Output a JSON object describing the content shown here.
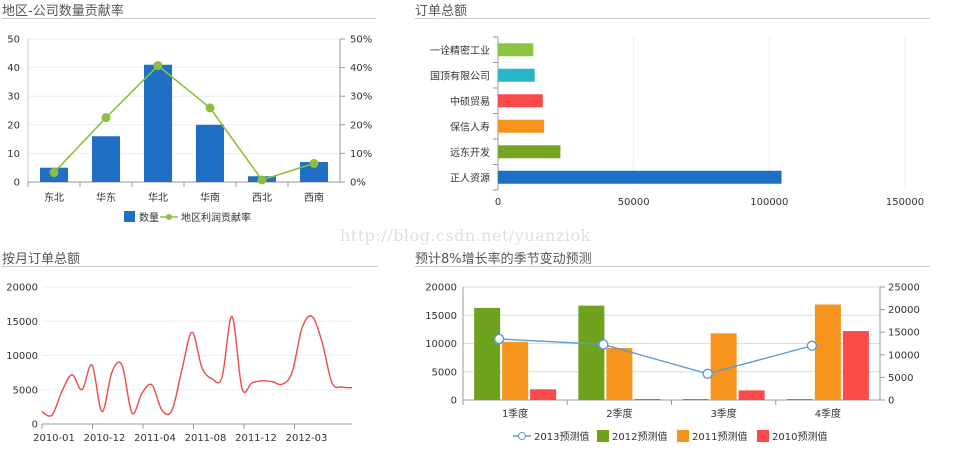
{
  "watermark": "http://blog.csdn.net/yuanziok",
  "chart_data": [
    {
      "id": "region",
      "type": "bar",
      "title": "地区-公司数量贡献率",
      "categories": [
        "东北",
        "华东",
        "华北",
        "华南",
        "西北",
        "西南"
      ],
      "series": [
        {
          "name": "数量",
          "type": "bar",
          "axis": "left",
          "color": "#1f6fc5",
          "values": [
            5,
            16,
            41,
            20,
            2,
            7
          ]
        },
        {
          "name": "地区利润贡献率",
          "type": "line",
          "axis": "right",
          "color": "#8cbf3f",
          "values": [
            3.3,
            22.5,
            40.7,
            25.9,
            0.7,
            6.5
          ]
        }
      ],
      "ylim_left": [
        0,
        50
      ],
      "yticks_left": [
        "0",
        "10",
        "20",
        "30",
        "40",
        "50"
      ],
      "ylim_right": [
        0,
        50
      ],
      "yticks_right": [
        "0%",
        "10%",
        "20%",
        "30%",
        "40%",
        "50%"
      ],
      "legend": "bottom"
    },
    {
      "id": "orders",
      "type": "bar",
      "orientation": "horizontal",
      "title": "订单总额",
      "categories": [
        "一诠精密工业",
        "国顶有限公司",
        "中硕贸易",
        "保信人寿",
        "远东开发",
        "正人资源"
      ],
      "values": [
        13000,
        13500,
        16500,
        17000,
        23000,
        104500
      ],
      "colors": [
        "#8cc63f",
        "#26b5c9",
        "#fb4a4a",
        "#f7941d",
        "#76a524",
        "#1f6fc5"
      ],
      "xlim": [
        0,
        150000
      ],
      "xticks": [
        "0",
        "50000",
        "100000",
        "150000"
      ],
      "grid": true
    },
    {
      "id": "monthly",
      "type": "line",
      "title": "按月订单总额",
      "x": [
        0,
        1,
        2,
        3,
        4,
        5,
        6,
        7,
        8,
        9,
        10,
        11,
        12,
        13,
        14,
        15,
        16,
        17,
        18,
        19,
        20,
        21,
        22,
        23,
        24,
        25,
        26,
        27,
        28,
        29,
        30,
        31
      ],
      "series": [
        {
          "name": "",
          "color": "#ef4a4a",
          "values": [
            1800,
            1300,
            4800,
            7200,
            5000,
            8600,
            1800,
            7600,
            8600,
            1600,
            4500,
            5700,
            2000,
            2000,
            8000,
            13400,
            8200,
            6600,
            6800,
            15700,
            5200,
            6000,
            6300,
            6200,
            5800,
            7500,
            14000,
            15700,
            12000,
            6000,
            5400,
            5300
          ]
        }
      ],
      "xticks": [
        "2010-01",
        "2010-12",
        "2011-04",
        "2011-08",
        "2011-12",
        "2012-03"
      ],
      "ylim": [
        0,
        20000
      ],
      "yticks": [
        "0",
        "5000",
        "10000",
        "15000",
        "20000"
      ],
      "grid": true
    },
    {
      "id": "forecast",
      "type": "bar",
      "title": "预计8%增长率的季节变动预测",
      "categories": [
        "1季度",
        "2季度",
        "3季度",
        "4季度"
      ],
      "series": [
        {
          "name": "2013预测值",
          "type": "line",
          "axis": "right",
          "color": "#5b9bd5",
          "values": [
            13500,
            12300,
            5800,
            12000
          ]
        },
        {
          "name": "2012预测值",
          "type": "bar",
          "axis": "left",
          "color": "#6ea21c",
          "values": [
            16300,
            16700,
            0,
            0
          ]
        },
        {
          "name": "2011预测值",
          "type": "bar",
          "axis": "left",
          "color": "#f7941d",
          "values": [
            10300,
            9200,
            11800,
            16900
          ]
        },
        {
          "name": "2010预测值",
          "type": "bar",
          "axis": "left",
          "color": "#fb4a4a",
          "values": [
            1900,
            0,
            1700,
            12200
          ]
        }
      ],
      "ylim_left": [
        0,
        20000
      ],
      "yticks_left": [
        "0",
        "5000",
        "10000",
        "15000",
        "20000"
      ],
      "ylim_right": [
        0,
        25000
      ],
      "yticks_right": [
        "0",
        "5000",
        "10000",
        "15000",
        "20000",
        "25000"
      ],
      "legend": "bottom",
      "grid": true
    }
  ]
}
